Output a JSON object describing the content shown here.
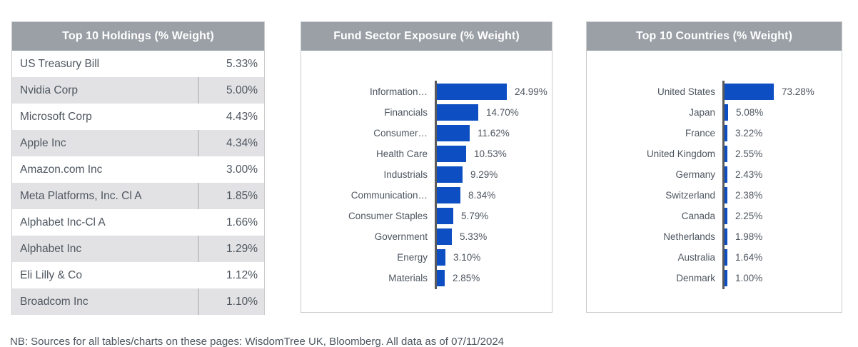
{
  "footnote": "NB: Sources for all tables/charts on these pages: WisdomTree UK, Bloomberg. All data as of 07/11/2024",
  "colors": {
    "panel_header_bg": "#9aa0a6",
    "panel_header_text": "#ffffff",
    "alt_row_bg": "#e2e2e4",
    "bar_blue": "#0d4fc3",
    "axis_gray": "#595a5c",
    "body_text": "#4e5660",
    "panel_border": "#c9cacc"
  },
  "chart_data": [
    {
      "type": "table",
      "title": "Top 10 Holdings (% Weight)",
      "rows": [
        {
          "name": "US Treasury Bill",
          "weight": "5.33%"
        },
        {
          "name": "Nvidia Corp",
          "weight": "5.00%"
        },
        {
          "name": "Microsoft Corp",
          "weight": "4.43%"
        },
        {
          "name": "Apple Inc",
          "weight": "4.34%"
        },
        {
          "name": "Amazon.com Inc",
          "weight": "3.00%"
        },
        {
          "name": "Meta Platforms, Inc. Cl A",
          "weight": "1.85%"
        },
        {
          "name": "Alphabet Inc-Cl A",
          "weight": "1.66%"
        },
        {
          "name": "Alphabet Inc",
          "weight": "1.29%"
        },
        {
          "name": "Eli Lilly & Co",
          "weight": "1.12%"
        },
        {
          "name": "Broadcom Inc",
          "weight": "1.10%"
        }
      ]
    },
    {
      "type": "bar",
      "orientation": "horizontal",
      "title": "Fund Sector Exposure (% Weight)",
      "categories": [
        "Information…",
        "Financials",
        "Consumer…",
        "Health Care",
        "Industrials",
        "Communication…",
        "Consumer Staples",
        "Government",
        "Energy",
        "Materials"
      ],
      "values": [
        24.99,
        14.7,
        11.62,
        10.53,
        9.29,
        8.34,
        5.79,
        5.33,
        3.1,
        2.85
      ],
      "value_labels": [
        "24.99%",
        "14.70%",
        "11.62%",
        "10.53%",
        "9.29%",
        "8.34%",
        "5.79%",
        "5.33%",
        "3.10%",
        "2.85%"
      ],
      "bar_color": "#0d4fc3",
      "xlim": [
        0,
        25
      ],
      "grid": false,
      "legend": "none"
    },
    {
      "type": "bar",
      "orientation": "horizontal",
      "title": "Top 10 Countries (% Weight)",
      "categories": [
        "United States",
        "Japan",
        "France",
        "United Kingdom",
        "Germany",
        "Switzerland",
        "Canada",
        "Netherlands",
        "Australia",
        "Denmark"
      ],
      "values": [
        73.28,
        5.08,
        3.22,
        2.55,
        2.43,
        2.38,
        2.25,
        1.98,
        1.64,
        1.0
      ],
      "value_labels": [
        "73.28%",
        "5.08%",
        "3.22%",
        "2.55%",
        "2.43%",
        "2.38%",
        "2.25%",
        "1.98%",
        "1.64%",
        "1.00%"
      ],
      "bar_color": "#0d4fc3",
      "xlim": [
        0,
        75
      ],
      "grid": false,
      "legend": "none"
    }
  ]
}
